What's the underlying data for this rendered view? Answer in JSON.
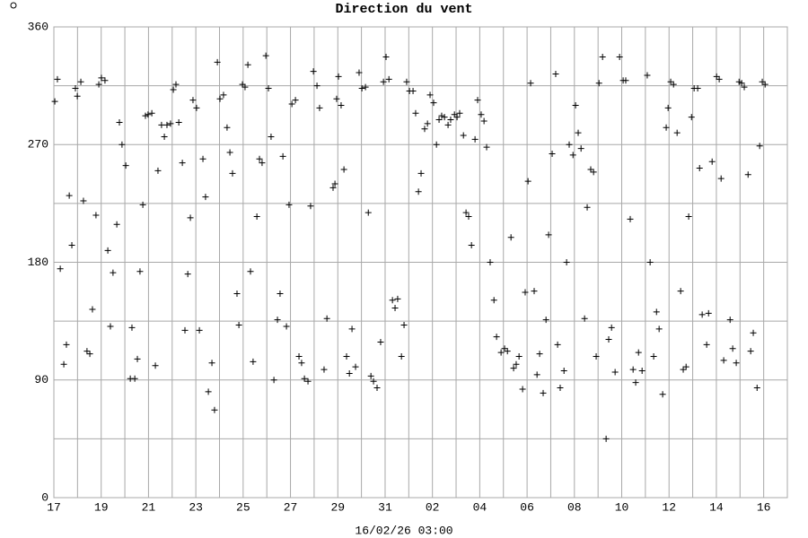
{
  "chart_data": {
    "type": "scatter",
    "title": "Direction du vent",
    "x_label": "16/02/26 03:00",
    "xlim": [
      0,
      31
    ],
    "ylim": [
      0,
      360
    ],
    "xticks": [
      {
        "value": 0,
        "label": "17"
      },
      {
        "value": 2,
        "label": "19"
      },
      {
        "value": 4,
        "label": "21"
      },
      {
        "value": 6,
        "label": "23"
      },
      {
        "value": 8,
        "label": "25"
      },
      {
        "value": 10,
        "label": "27"
      },
      {
        "value": 12,
        "label": "29"
      },
      {
        "value": 14,
        "label": "31"
      },
      {
        "value": 16,
        "label": "02"
      },
      {
        "value": 18,
        "label": "04"
      },
      {
        "value": 20,
        "label": "06"
      },
      {
        "value": 22,
        "label": "08"
      },
      {
        "value": 24,
        "label": "10"
      },
      {
        "value": 26,
        "label": "12"
      },
      {
        "value": 28,
        "label": "14"
      },
      {
        "value": 30,
        "label": "16"
      }
    ],
    "minor_xticks": [
      1,
      3,
      5,
      7,
      9,
      11,
      13,
      15,
      17,
      19,
      21,
      23,
      25,
      27,
      29
    ],
    "yticks": [
      0,
      90,
      180,
      270,
      360
    ],
    "minor_yticks": [
      45,
      135,
      225,
      315
    ],
    "grid": true,
    "color": "#000000",
    "x": [
      0.04,
      0.15,
      0.27,
      0.42,
      0.53,
      0.65,
      0.76,
      0.91,
      0.99,
      1.14,
      1.25,
      1.4,
      1.52,
      1.63,
      1.78,
      1.9,
      2.01,
      2.16,
      2.28,
      2.39,
      2.5,
      2.66,
      2.77,
      2.88,
      3.04,
      3.23,
      3.3,
      3.42,
      3.53,
      3.64,
      3.76,
      3.87,
      3.98,
      4.14,
      4.29,
      4.4,
      4.55,
      4.67,
      4.78,
      4.93,
      5.05,
      5.16,
      5.28,
      5.43,
      5.54,
      5.66,
      5.77,
      5.88,
      6.03,
      6.15,
      6.3,
      6.41,
      6.53,
      6.68,
      6.79,
      6.91,
      7.02,
      7.17,
      7.32,
      7.44,
      7.55,
      7.74,
      7.82,
      7.97,
      8.08,
      8.2,
      8.31,
      8.42,
      8.58,
      8.69,
      8.8,
      8.96,
      9.07,
      9.18,
      9.3,
      9.45,
      9.56,
      9.68,
      9.83,
      9.94,
      10.06,
      10.21,
      10.36,
      10.47,
      10.59,
      10.74,
      10.85,
      10.97,
      11.12,
      11.23,
      11.42,
      11.54,
      11.8,
      11.88,
      11.95,
      12.03,
      12.14,
      12.26,
      12.37,
      12.49,
      12.6,
      12.75,
      12.9,
      13.02,
      13.17,
      13.29,
      13.4,
      13.51,
      13.66,
      13.81,
      13.93,
      14.04,
      14.16,
      14.31,
      14.42,
      14.53,
      14.69,
      14.8,
      14.91,
      15.03,
      15.18,
      15.29,
      15.41,
      15.52,
      15.67,
      15.79,
      15.9,
      16.05,
      16.17,
      16.28,
      16.39,
      16.51,
      16.66,
      16.77,
      16.93,
      17.04,
      17.15,
      17.31,
      17.42,
      17.53,
      17.65,
      17.8,
      17.91,
      18.06,
      18.18,
      18.29,
      18.44,
      18.6,
      18.71,
      18.9,
      19.05,
      19.17,
      19.32,
      19.43,
      19.54,
      19.66,
      19.81,
      19.92,
      20.04,
      20.15,
      20.3,
      20.42,
      20.53,
      20.68,
      20.8,
      20.91,
      21.06,
      21.21,
      21.29,
      21.4,
      21.56,
      21.67,
      21.78,
      21.94,
      22.05,
      22.16,
      22.28,
      22.43,
      22.54,
      22.69,
      22.81,
      22.92,
      23.04,
      23.19,
      23.34,
      23.45,
      23.57,
      23.72,
      23.91,
      24.06,
      24.17,
      24.36,
      24.48,
      24.59,
      24.71,
      24.86,
      25.08,
      25.2,
      25.35,
      25.47,
      25.58,
      25.73,
      25.88,
      25.96,
      26.07,
      26.19,
      26.34,
      26.49,
      26.6,
      26.72,
      26.83,
      26.95,
      27.06,
      27.21,
      27.29,
      27.4,
      27.59,
      27.67,
      27.82,
      28.01,
      28.12,
      28.2,
      28.31,
      28.58,
      28.69,
      28.84,
      28.96,
      29.07,
      29.18,
      29.34,
      29.45,
      29.56,
      29.72,
      29.83,
      29.94,
      30.06
    ],
    "values": [
      303,
      320,
      175,
      102,
      117,
      231,
      193,
      313,
      307,
      318,
      227,
      112,
      110,
      144,
      216,
      316,
      321,
      319,
      189,
      131,
      172,
      209,
      287,
      270,
      254,
      91,
      130,
      91,
      106,
      173,
      224,
      292,
      293,
      294,
      101,
      250,
      285,
      276,
      285,
      286,
      312,
      316,
      287,
      256,
      128,
      171,
      214,
      304,
      298,
      128,
      259,
      230,
      81,
      103,
      67,
      333,
      305,
      308,
      283,
      264,
      248,
      156,
      132,
      316,
      314,
      331,
      173,
      104,
      215,
      259,
      256,
      338,
      313,
      276,
      90,
      136,
      156,
      261,
      131,
      224,
      301,
      304,
      108,
      103,
      91,
      89,
      223,
      326,
      315,
      298,
      98,
      137,
      237,
      240,
      305,
      322,
      300,
      251,
      108,
      95,
      129,
      100,
      325,
      313,
      314,
      218,
      93,
      89,
      84,
      119,
      318,
      337,
      320,
      151,
      145,
      152,
      108,
      132,
      318,
      311,
      311,
      294,
      234,
      248,
      282,
      286,
      308,
      302,
      270,
      289,
      292,
      291,
      285,
      289,
      293,
      291,
      294,
      277,
      218,
      215,
      193,
      274,
      304,
      293,
      288,
      268,
      180,
      151,
      123,
      111,
      114,
      112,
      199,
      99,
      102,
      108,
      83,
      157,
      242,
      317,
      158,
      94,
      110,
      80,
      136,
      201,
      263,
      324,
      117,
      84,
      97,
      180,
      270,
      262,
      300,
      279,
      267,
      137,
      222,
      251,
      249,
      108,
      317,
      337,
      45,
      121,
      130,
      96,
      337,
      319,
      319,
      213,
      98,
      88,
      111,
      97,
      323,
      180,
      108,
      142,
      129,
      79,
      283,
      298,
      318,
      316,
      279,
      158,
      98,
      100,
      215,
      291,
      313,
      313,
      252,
      140,
      117,
      141,
      257,
      322,
      320,
      244,
      105,
      136,
      114,
      103,
      318,
      317,
      314,
      247,
      112,
      126,
      84,
      269,
      318,
      316
    ]
  }
}
